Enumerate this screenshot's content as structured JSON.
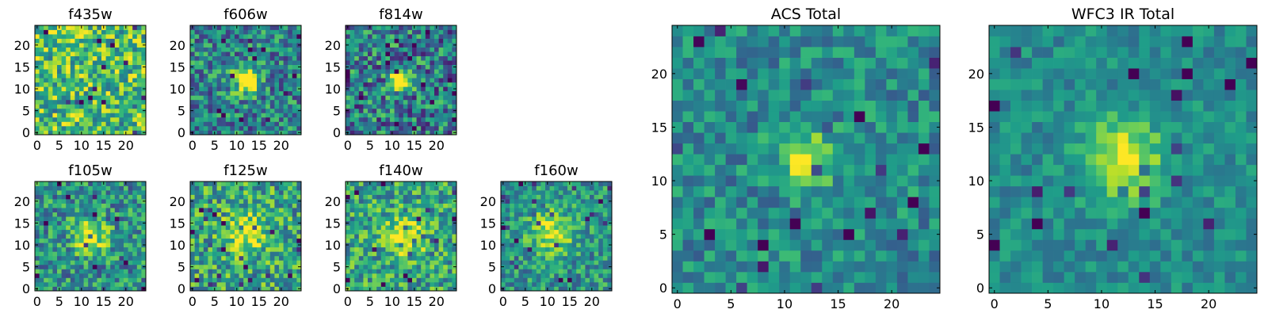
{
  "chart_data": [
    {
      "type": "heatmap",
      "title": "f435w",
      "size": 25,
      "xticks": [
        0,
        5,
        10,
        15,
        20
      ],
      "yticks": [
        0,
        5,
        10,
        15,
        20
      ],
      "xlim": [
        -0.5,
        24.5
      ],
      "ylim": [
        -0.5,
        24.5
      ],
      "colormap": "viridis",
      "source_center": [
        12,
        12
      ],
      "source_strength": 0.0,
      "noise_level": 0.32,
      "source_width": 2.2,
      "background_level": 0.7,
      "seed": 11
    },
    {
      "type": "heatmap",
      "title": "f606w",
      "size": 25,
      "xticks": [
        0,
        5,
        10,
        15,
        20
      ],
      "yticks": [
        0,
        5,
        10,
        15,
        20
      ],
      "xlim": [
        -0.5,
        24.5
      ],
      "ylim": [
        -0.5,
        24.5
      ],
      "colormap": "viridis",
      "source_center": [
        12,
        12
      ],
      "source_strength": 0.85,
      "noise_level": 0.3,
      "source_width": 2.0,
      "background_level": 0.45,
      "seed": 23
    },
    {
      "type": "heatmap",
      "title": "f814w",
      "size": 25,
      "xticks": [
        0,
        5,
        10,
        15,
        20
      ],
      "yticks": [
        0,
        5,
        10,
        15,
        20
      ],
      "xlim": [
        -0.5,
        24.5
      ],
      "ylim": [
        -0.5,
        24.5
      ],
      "colormap": "viridis",
      "source_center": [
        12,
        12
      ],
      "source_strength": 0.85,
      "noise_level": 0.34,
      "source_width": 1.6,
      "background_level": 0.42,
      "seed": 37
    },
    {
      "type": "heatmap",
      "title": "f105w",
      "size": 25,
      "xticks": [
        0,
        5,
        10,
        15,
        20
      ],
      "yticks": [
        0,
        5,
        10,
        15,
        20
      ],
      "xlim": [
        -0.5,
        24.5
      ],
      "ylim": [
        -0.5,
        24.5
      ],
      "colormap": "viridis",
      "source_center": [
        12,
        12
      ],
      "source_strength": 0.45,
      "noise_level": 0.28,
      "source_width": 2.8,
      "background_level": 0.5,
      "seed": 41
    },
    {
      "type": "heatmap",
      "title": "f125w",
      "size": 25,
      "xticks": [
        0,
        5,
        10,
        15,
        20
      ],
      "yticks": [
        0,
        5,
        10,
        15,
        20
      ],
      "xlim": [
        -0.5,
        24.5
      ],
      "ylim": [
        -0.5,
        24.5
      ],
      "colormap": "viridis",
      "source_center": [
        12,
        13
      ],
      "source_strength": 0.45,
      "noise_level": 0.3,
      "source_width": 3.0,
      "background_level": 0.58,
      "seed": 53
    },
    {
      "type": "heatmap",
      "title": "f140w",
      "size": 25,
      "xticks": [
        0,
        5,
        10,
        15,
        20
      ],
      "yticks": [
        0,
        5,
        10,
        15,
        20
      ],
      "xlim": [
        -0.5,
        24.5
      ],
      "ylim": [
        -0.5,
        24.5
      ],
      "colormap": "viridis",
      "source_center": [
        13,
        12
      ],
      "source_strength": 0.45,
      "noise_level": 0.28,
      "source_width": 3.0,
      "background_level": 0.58,
      "seed": 67
    },
    {
      "type": "heatmap",
      "title": "f160w",
      "size": 25,
      "xticks": [
        0,
        5,
        10,
        15,
        20
      ],
      "yticks": [
        0,
        5,
        10,
        15,
        20
      ],
      "xlim": [
        -0.5,
        24.5
      ],
      "ylim": [
        -0.5,
        24.5
      ],
      "colormap": "viridis",
      "source_center": [
        11,
        13
      ],
      "source_strength": 0.45,
      "noise_level": 0.24,
      "source_width": 3.2,
      "background_level": 0.52,
      "seed": 79
    },
    {
      "type": "heatmap",
      "title": "ACS Total",
      "size": 25,
      "xticks": [
        0,
        5,
        10,
        15,
        20
      ],
      "yticks": [
        0,
        5,
        10,
        15,
        20
      ],
      "xlim": [
        -0.5,
        24.5
      ],
      "ylim": [
        -0.5,
        24.5
      ],
      "colormap": "viridis",
      "source_center": [
        12,
        12
      ],
      "source_strength": 0.5,
      "noise_level": 0.2,
      "source_width": 1.8,
      "background_level": 0.48,
      "seed": 97
    },
    {
      "type": "heatmap",
      "title": "WFC3 IR Total",
      "size": 25,
      "xticks": [
        0,
        5,
        10,
        15,
        20
      ],
      "yticks": [
        0,
        5,
        10,
        15,
        20
      ],
      "xlim": [
        -0.5,
        24.5
      ],
      "ylim": [
        -0.5,
        24.5
      ],
      "colormap": "viridis",
      "source_center": [
        12,
        12
      ],
      "source_strength": 0.5,
      "noise_level": 0.14,
      "source_width": 2.6,
      "background_level": 0.48,
      "seed": 113
    }
  ]
}
